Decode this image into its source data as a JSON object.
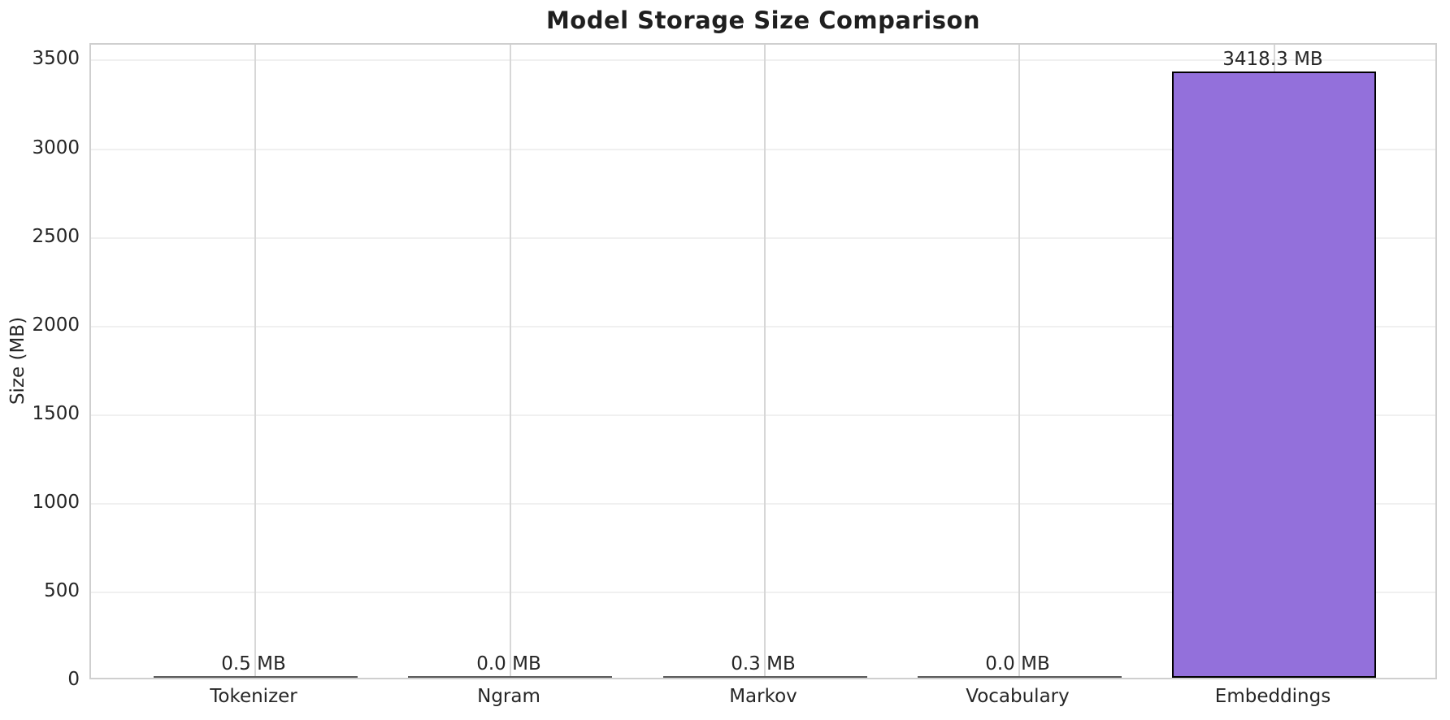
{
  "chart_data": {
    "type": "bar",
    "title": "Model Storage Size Comparison",
    "ylabel": "Size (MB)",
    "xlabel": "",
    "categories": [
      "Tokenizer",
      "Ngram",
      "Markov",
      "Vocabulary",
      "Embeddings"
    ],
    "values": [
      0.5,
      0.0,
      0.3,
      0.0,
      3418.3
    ],
    "bar_labels": [
      "0.5 MB",
      "0.0 MB",
      "0.3 MB",
      "0.0 MB",
      "3418.3 MB"
    ],
    "yticks": [
      0,
      500,
      1000,
      1500,
      2000,
      2500,
      3000,
      3500
    ],
    "ylim": [
      0,
      3589
    ],
    "grid": true,
    "legend_position": "none",
    "colors": {
      "bar_fill": "#9370DB",
      "bar_edge": "#000000",
      "tiny_bar_line": "#5a5a5a",
      "grid_horizontal": "#f0f0f0",
      "grid_vertical": "#d7d7d7",
      "spine": "#cfcfcf",
      "text": "#262626",
      "background": "#ffffff"
    }
  }
}
